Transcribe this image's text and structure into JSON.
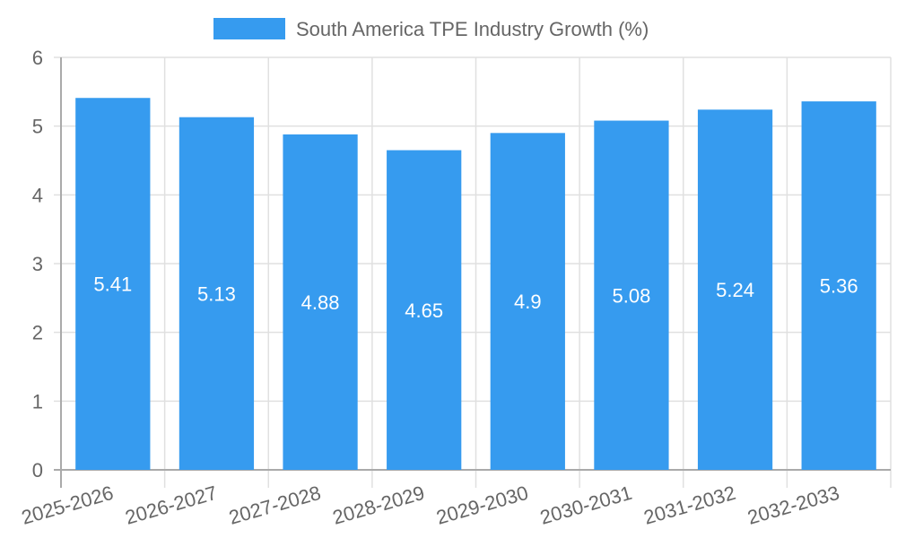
{
  "chart_data": {
    "type": "bar",
    "title": "",
    "xlabel": "",
    "ylabel": "",
    "categories": [
      "2025-2026",
      "2026-2027",
      "2027-2028",
      "2028-2029",
      "2029-2030",
      "2030-2031",
      "2031-2032",
      "2032-2033"
    ],
    "series": [
      {
        "name": "South America TPE Industry Growth (%)",
        "values": [
          5.41,
          5.13,
          4.88,
          4.65,
          4.9,
          5.08,
          5.24,
          5.36
        ],
        "color": "#369BEF"
      }
    ],
    "data_labels": [
      "5.41",
      "5.13",
      "4.88",
      "4.65",
      "4.9",
      "5.08",
      "5.24",
      "5.36"
    ],
    "ylim": [
      0,
      6
    ],
    "yticks": [
      "0",
      "1",
      "2",
      "3",
      "4",
      "5",
      "6"
    ],
    "grid": true,
    "legend_position": "top-center",
    "legend": [
      "South America TPE Industry Growth (%)"
    ]
  }
}
